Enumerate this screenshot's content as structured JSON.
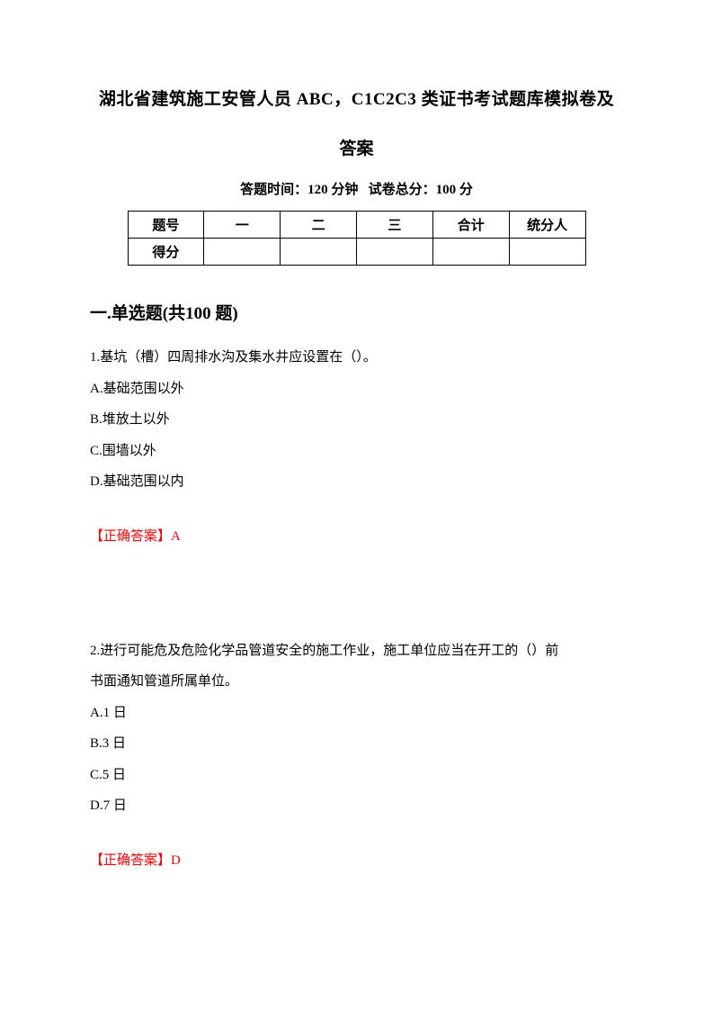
{
  "title": {
    "line1": "湖北省建筑施工安管人员 ABC，C1C2C3 类证书考试题库模拟卷及",
    "line2": "答案"
  },
  "exam_info": {
    "time_label": "答题时间：",
    "time_value": "120 分钟",
    "score_label": "试卷总分：",
    "score_value": "100 分"
  },
  "score_table": {
    "headers": [
      "题号",
      "一",
      "二",
      "三",
      "合计",
      "统分人"
    ],
    "row_label": "得分"
  },
  "section": {
    "title": "一.单选题(共100 题)"
  },
  "questions": [
    {
      "number": "1.",
      "text": "基坑（槽）四周排水沟及集水井应设置在（）。",
      "options": [
        "A.基础范围以外",
        "B.堆放土以外",
        "C.围墙以外",
        "D.基础范围以内"
      ],
      "answer": "【正确答案】A"
    },
    {
      "number": "2.",
      "text_line1": "进行可能危及危险化学品管道安全的施工作业，施工单位应当在开工的（）前",
      "text_line2": "书面通知管道所属单位。",
      "options": [
        "A.1 日",
        "B.3 日",
        "C.5 日",
        "D.7 日"
      ],
      "answer": "【正确答案】D"
    }
  ],
  "colors": {
    "text": "#000000",
    "answer": "#ff0000",
    "background": "#ffffff",
    "border": "#000000"
  }
}
